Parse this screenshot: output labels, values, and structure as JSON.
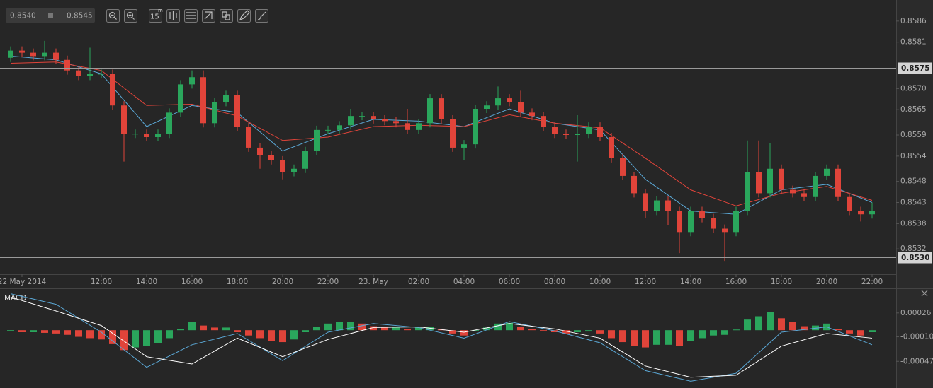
{
  "toolbar": {
    "bid": "0.8540",
    "ask": "0.8545",
    "timeframe": "15",
    "timeframe_unit": "m"
  },
  "chart_data": [
    {
      "type": "candlestick",
      "up_color": "#2aa65c",
      "down_color": "#e0443a",
      "categories": [
        null,
        "22 May 2014",
        null,
        null,
        null,
        null,
        null,
        null,
        "12:00",
        null,
        null,
        null,
        "14:00",
        null,
        null,
        null,
        "16:00",
        null,
        null,
        null,
        "18:00",
        null,
        null,
        null,
        "20:00",
        null,
        null,
        null,
        "22:00",
        null,
        null,
        null,
        "23. May",
        null,
        null,
        null,
        "02:00",
        null,
        null,
        null,
        "04:00",
        null,
        null,
        null,
        "06:00",
        null,
        null,
        null,
        "08:00",
        null,
        null,
        null,
        "10:00",
        null,
        null,
        null,
        "12:00",
        null,
        null,
        null,
        "14:00",
        null,
        null,
        null,
        "16:00",
        null,
        null,
        null,
        "18:00",
        null,
        null,
        null,
        "20:00",
        null,
        null,
        null,
        "22:00"
      ],
      "open": [
        0.85773,
        0.8579,
        0.85785,
        0.85777,
        0.85785,
        0.85768,
        0.85743,
        0.8573,
        0.85735,
        0.85735,
        0.8566,
        0.85593,
        0.85593,
        0.85585,
        0.85593,
        0.85643,
        0.8571,
        0.85727,
        0.85618,
        0.85668,
        0.85685,
        0.8561,
        0.8556,
        0.85543,
        0.8553,
        0.85502,
        0.8551,
        0.85552,
        0.85602,
        0.85602,
        0.85613,
        0.85635,
        0.85635,
        0.85627,
        0.85623,
        0.85618,
        0.85602,
        0.85618,
        0.85677,
        0.85627,
        0.8556,
        0.85568,
        0.85652,
        0.8566,
        0.85677,
        0.85668,
        0.85643,
        0.85635,
        0.8561,
        0.85593,
        0.8559,
        0.85593,
        0.8561,
        0.85585,
        0.85535,
        0.85493,
        0.85452,
        0.8541,
        0.85435,
        0.8541,
        0.8536,
        0.8541,
        0.85393,
        0.85368,
        0.8536,
        0.8541,
        0.85502,
        0.85452,
        0.8551,
        0.8546,
        0.85452,
        0.85443,
        0.85493,
        0.8551,
        0.85443,
        0.8541,
        0.85402
      ],
      "high": [
        0.858,
        0.858,
        0.85795,
        0.85813,
        0.85795,
        0.85778,
        0.85753,
        0.85797,
        0.85745,
        0.85745,
        0.8567,
        0.85603,
        0.85603,
        0.85603,
        0.85653,
        0.8572,
        0.85743,
        0.85743,
        0.85678,
        0.85695,
        0.85695,
        0.8562,
        0.8557,
        0.85553,
        0.8554,
        0.8552,
        0.85562,
        0.85612,
        0.85612,
        0.85623,
        0.85652,
        0.85645,
        0.85645,
        0.85637,
        0.85633,
        0.85652,
        0.85628,
        0.85687,
        0.85687,
        0.85637,
        0.85578,
        0.85662,
        0.8567,
        0.85705,
        0.85687,
        0.85695,
        0.85653,
        0.85645,
        0.8562,
        0.85603,
        0.85637,
        0.8562,
        0.8562,
        0.85595,
        0.85545,
        0.85503,
        0.85462,
        0.85445,
        0.85445,
        0.8542,
        0.8542,
        0.8542,
        0.85403,
        0.85378,
        0.8542,
        0.85577,
        0.85577,
        0.8557,
        0.8552,
        0.8547,
        0.85462,
        0.85503,
        0.8552,
        0.8552,
        0.85453,
        0.8542,
        0.8543
      ],
      "low": [
        0.85763,
        0.85775,
        0.85767,
        0.85767,
        0.85758,
        0.85733,
        0.8572,
        0.8572,
        0.85725,
        0.8565,
        0.85527,
        0.85583,
        0.85575,
        0.85575,
        0.85583,
        0.85633,
        0.857,
        0.85608,
        0.85608,
        0.85658,
        0.856,
        0.8555,
        0.8551,
        0.8552,
        0.85485,
        0.85492,
        0.855,
        0.85542,
        0.85592,
        0.85592,
        0.85603,
        0.85625,
        0.85617,
        0.85613,
        0.85608,
        0.85592,
        0.85592,
        0.85608,
        0.85617,
        0.8555,
        0.8553,
        0.85558,
        0.85642,
        0.8565,
        0.85658,
        0.85633,
        0.85625,
        0.856,
        0.85583,
        0.8558,
        0.85527,
        0.85583,
        0.85575,
        0.85525,
        0.85483,
        0.85442,
        0.85393,
        0.854,
        0.85377,
        0.8531,
        0.8535,
        0.85383,
        0.85358,
        0.8529,
        0.8535,
        0.854,
        0.85442,
        0.85442,
        0.8545,
        0.85442,
        0.85433,
        0.85433,
        0.85483,
        0.85433,
        0.854,
        0.85385,
        0.85392
      ],
      "close": [
        0.8579,
        0.85785,
        0.85777,
        0.85785,
        0.85768,
        0.85743,
        0.8573,
        0.85735,
        0.85735,
        0.8566,
        0.85593,
        0.85593,
        0.85585,
        0.85593,
        0.85643,
        0.8571,
        0.85727,
        0.85618,
        0.85668,
        0.85685,
        0.8561,
        0.8556,
        0.85543,
        0.8553,
        0.85502,
        0.8551,
        0.85552,
        0.85602,
        0.85602,
        0.85613,
        0.85635,
        0.85635,
        0.85627,
        0.85623,
        0.85618,
        0.85602,
        0.85618,
        0.85677,
        0.85627,
        0.8556,
        0.85568,
        0.85652,
        0.8566,
        0.85677,
        0.85668,
        0.85643,
        0.85635,
        0.8561,
        0.85593,
        0.8559,
        0.85593,
        0.8561,
        0.85585,
        0.85535,
        0.85493,
        0.85452,
        0.8541,
        0.85435,
        0.8541,
        0.8536,
        0.8541,
        0.85393,
        0.85368,
        0.8536,
        0.8541,
        0.85502,
        0.85452,
        0.8551,
        0.8546,
        0.85452,
        0.85443,
        0.85493,
        0.8551,
        0.85443,
        0.8541,
        0.85402,
        0.8541
      ],
      "series": [
        {
          "color": "#5ba8d6",
          "x": [
            0,
            4,
            8,
            12,
            16,
            20,
            24,
            28,
            32,
            36,
            40,
            44,
            48,
            52,
            56,
            60,
            64,
            68,
            72,
            76
          ],
          "values": [
            0.85777,
            0.85768,
            0.85735,
            0.8561,
            0.8566,
            0.85643,
            0.85552,
            0.85593,
            0.85627,
            0.85623,
            0.8561,
            0.85652,
            0.85618,
            0.85602,
            0.85485,
            0.8541,
            0.85402,
            0.8546,
            0.85473,
            0.8543
          ]
        },
        {
          "color": "#e0443a",
          "x": [
            0,
            4,
            8,
            12,
            16,
            20,
            24,
            28,
            32,
            36,
            40,
            44,
            48,
            52,
            56,
            60,
            64,
            68,
            72,
            76
          ],
          "values": [
            0.8576,
            0.85763,
            0.85743,
            0.8566,
            0.85663,
            0.85635,
            0.85577,
            0.85585,
            0.8561,
            0.85613,
            0.8561,
            0.85638,
            0.85618,
            0.85607,
            0.85535,
            0.8546,
            0.85422,
            0.85452,
            0.85468,
            0.85435
          ]
        }
      ],
      "ylim": [
        0.8526,
        0.8591
      ],
      "yticks": [
        0.8532,
        0.8538,
        0.8543,
        0.8548,
        0.8554,
        0.8559,
        0.8565,
        {
          "value": 0.857,
          "label": "0.8570"
        },
        0.8581,
        0.8586
      ],
      "levels": [
        0.8575,
        {
          "value": 0.853,
          "label": "0.8530"
        }
      ]
    },
    {
      "type": "macd",
      "title": "MACD",
      "up_color": "#2aa65c",
      "down_color": "#e0443a",
      "histogram": [
        0,
        -3e-05,
        -3e-05,
        -4e-05,
        -5e-05,
        -7e-05,
        -0.0001,
        -0.00012,
        -0.00014,
        -0.00021,
        -0.0003,
        -0.00026,
        -0.00024,
        -0.00019,
        -0.00012,
        2e-05,
        0.00013,
        7e-05,
        4e-05,
        4e-05,
        -3e-05,
        -8e-05,
        -0.00012,
        -0.00016,
        -0.00018,
        -0.00014,
        -3e-05,
        5e-05,
        0.0001,
        0.00012,
        0.00013,
        0.0001,
        6e-05,
        4e-05,
        4e-05,
        2e-05,
        4e-05,
        5e-05,
        1e-05,
        -5e-05,
        -8e-05,
        -1e-05,
        4e-05,
        0.0001,
        0.00011,
        5e-05,
        2e-05,
        -1e-05,
        -3e-05,
        -5e-05,
        -3e-05,
        -2e-05,
        -5e-05,
        -0.00012,
        -0.00018,
        -0.00024,
        -0.00026,
        -0.00022,
        -0.00022,
        -0.00024,
        -0.00016,
        -0.00012,
        -8e-05,
        -7e-05,
        1e-05,
        0.00016,
        0.00021,
        0.00027,
        0.00018,
        0.00012,
        6e-05,
        7e-05,
        0.0001,
        2e-05,
        -5e-05,
        -8e-05,
        -3e-05
      ],
      "series": [
        {
          "color": "#5ba8d6",
          "x": [
            0,
            4,
            8,
            12,
            16,
            20,
            24,
            28,
            32,
            36,
            40,
            44,
            48,
            52,
            56,
            60,
            64,
            68,
            72,
            76
          ],
          "values": [
            0.00055,
            0.00039,
            -3e-05,
            -0.00056,
            -0.00022,
            -5e-05,
            -0.00046,
            -3e-05,
            0.0001,
            4e-05,
            -0.00012,
            0.00013,
            -1e-05,
            -0.00019,
            -0.00061,
            -0.00077,
            -0.00065,
            -3e-05,
            5e-05,
            -0.00022
          ]
        },
        {
          "color": "#ffffff",
          "x": [
            0,
            4,
            8,
            12,
            16,
            20,
            24,
            28,
            32,
            36,
            40,
            44,
            48,
            52,
            56,
            60,
            64,
            68,
            72,
            76
          ],
          "values": [
            0.0005,
            0.00029,
            7e-05,
            -0.0004,
            -0.00051,
            -0.00012,
            -0.0004,
            -0.00014,
            4e-05,
            5e-05,
            -3e-05,
            0.0001,
            2e-05,
            -0.00012,
            -0.00054,
            -0.00071,
            -0.00068,
            -0.00024,
            -5e-05,
            -0.00012
          ]
        }
      ],
      "ylim": [
        -0.00083,
        0.00061
      ],
      "yticks": [
        0.00026,
        {
          "value": -0.0001,
          "label": "-0.00010"
        },
        -0.00047
      ]
    }
  ]
}
